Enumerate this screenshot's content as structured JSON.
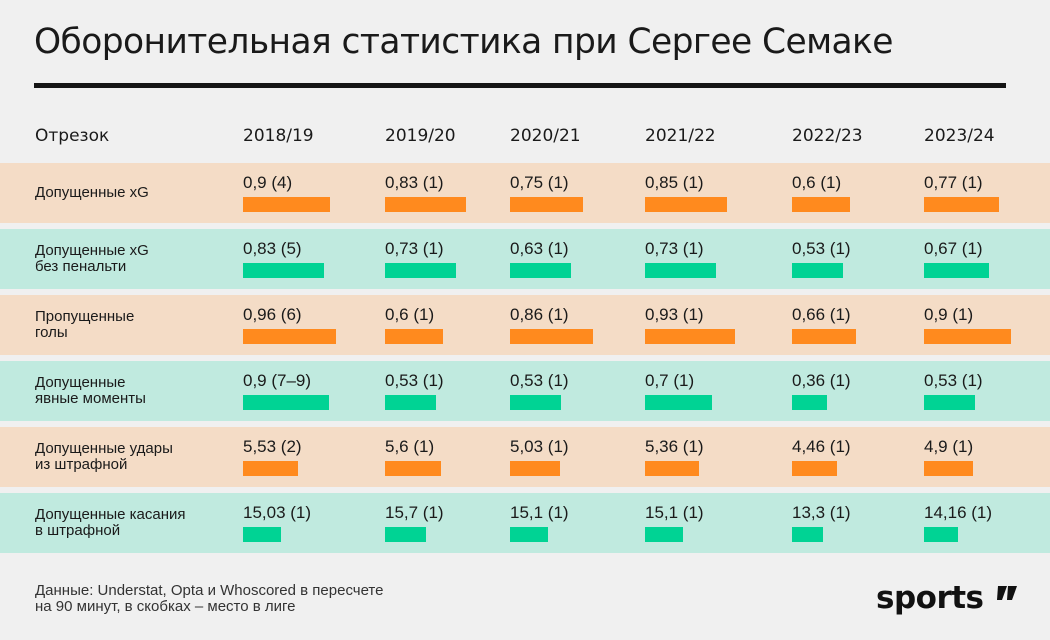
{
  "title": "Оборонительная статистика при Сергее Семаке",
  "header": {
    "label_col": "Отрезок",
    "seasons": [
      "2018/19",
      "2019/20",
      "2020/21",
      "2021/22",
      "2022/23",
      "2023/24"
    ]
  },
  "colors": {
    "orange_bar": "#ff8a1e",
    "green_bar": "#00d394",
    "orange_row": "#f4dcc6",
    "green_row": "#c0eadf"
  },
  "chart_data": {
    "type": "table",
    "title": "Оборонительная статистика при Сергее Семаке",
    "columns": [
      "2018/19",
      "2019/20",
      "2020/21",
      "2021/22",
      "2022/23",
      "2023/24"
    ],
    "rows": [
      {
        "label": "Допущенные xG",
        "color": "orange",
        "values": [
          0.9,
          0.83,
          0.75,
          0.85,
          0.6,
          0.77
        ],
        "texts": [
          "0,9 (4)",
          "0,83 (1)",
          "0,75 (1)",
          "0,85 (1)",
          "0,6 (1)",
          "0,77 (1)"
        ]
      },
      {
        "label": "Допущенные xG\nбез пенальти",
        "color": "green",
        "values": [
          0.83,
          0.73,
          0.63,
          0.73,
          0.53,
          0.67
        ],
        "texts": [
          "0,83 (5)",
          "0,73 (1)",
          "0,63 (1)",
          "0,73 (1)",
          "0,53 (1)",
          "0,67 (1)"
        ]
      },
      {
        "label": "Пропущенные\nголы",
        "color": "orange",
        "values": [
          0.96,
          0.6,
          0.86,
          0.93,
          0.66,
          0.9
        ],
        "texts": [
          "0,96 (6)",
          "0,6 (1)",
          "0,86 (1)",
          "0,93 (1)",
          "0,66 (1)",
          "0,9 (1)"
        ]
      },
      {
        "label": "Допущенные\nявные моменты",
        "color": "green",
        "values": [
          0.9,
          0.53,
          0.53,
          0.7,
          0.36,
          0.53
        ],
        "texts": [
          "0,9 (7–9)",
          "0,53 (1)",
          "0,53 (1)",
          "0,7 (1)",
          "0,36 (1)",
          "0,53 (1)"
        ]
      },
      {
        "label": "Допущенные удары\nиз штрафной",
        "color": "orange",
        "values": [
          5.53,
          5.6,
          5.03,
          5.36,
          4.46,
          4.9
        ],
        "texts": [
          "5,53 (2)",
          "5,6 (1)",
          "5,03 (1)",
          "5,36 (1)",
          "4,46 (1)",
          "4,9 (1)"
        ]
      },
      {
        "label": "Допущенные касания\nв штрафной",
        "color": "green",
        "values": [
          15.03,
          15.7,
          15.1,
          15.1,
          13.3,
          14.16
        ],
        "texts": [
          "15,03 (1)",
          "15,7 (1)",
          "15,1 (1)",
          "15,1 (1)",
          "13,3 (1)",
          "14,16 (1)"
        ]
      }
    ]
  },
  "footer": {
    "note": "Данные: Understat, Opta и Whoscored в пересчете\nна 90 минут, в скобках – место в лиге",
    "logo": "sports’’"
  }
}
